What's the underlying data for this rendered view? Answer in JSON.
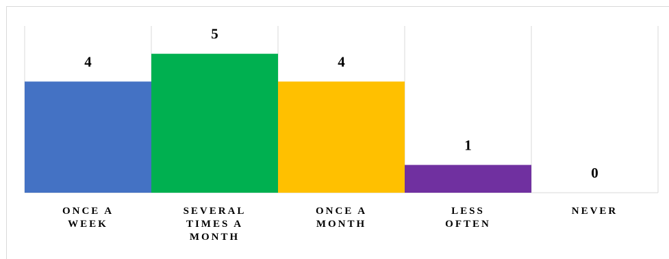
{
  "chart_data": {
    "type": "bar",
    "categories": [
      "ONCE A WEEK",
      "SEVERAL TIMES A MONTH",
      "ONCE A MONTH",
      "LESS OFTEN",
      "NEVER"
    ],
    "values": [
      4,
      5,
      4,
      1,
      0
    ],
    "colors": [
      "#4472c4",
      "#00b050",
      "#ffc000",
      "#7030a0",
      "#a5a5a5"
    ],
    "ylim": [
      0,
      6
    ],
    "grid": true
  }
}
